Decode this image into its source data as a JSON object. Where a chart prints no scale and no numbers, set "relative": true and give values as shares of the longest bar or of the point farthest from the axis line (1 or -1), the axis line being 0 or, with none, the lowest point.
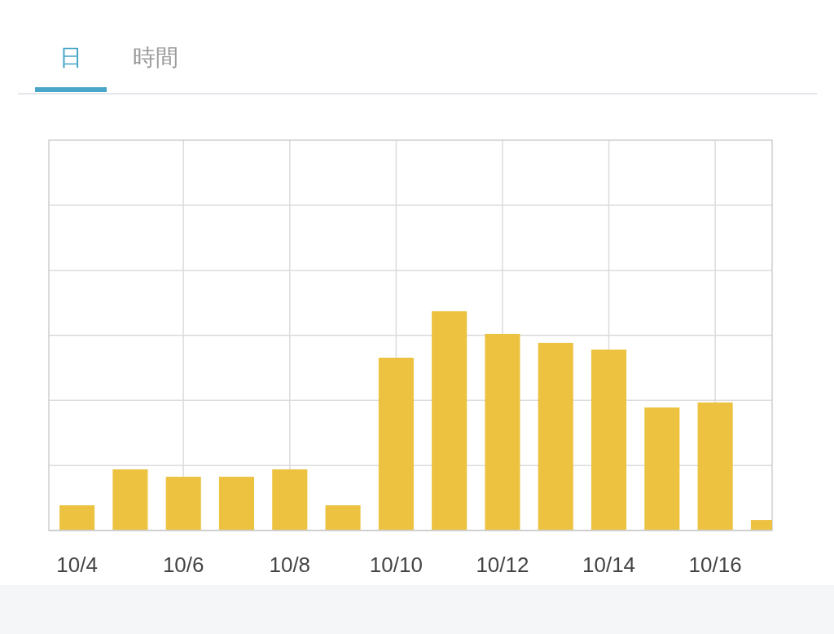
{
  "chart_data": {
    "type": "bar",
    "relative": true,
    "grid": true,
    "annotations": [
      "日",
      "時間"
    ],
    "categories": [
      "10/4",
      null,
      "10/6",
      null,
      "10/8",
      null,
      "10/10",
      null,
      "10/12",
      null,
      "10/14",
      null,
      "10/16",
      null
    ],
    "values": [
      0.115,
      0.279,
      0.245,
      0.245,
      0.279,
      0.115,
      0.788,
      1,
      0.896,
      0.855,
      0.825,
      0.561,
      0.584,
      0.048
    ],
    "color": "#ecc240"
  }
}
